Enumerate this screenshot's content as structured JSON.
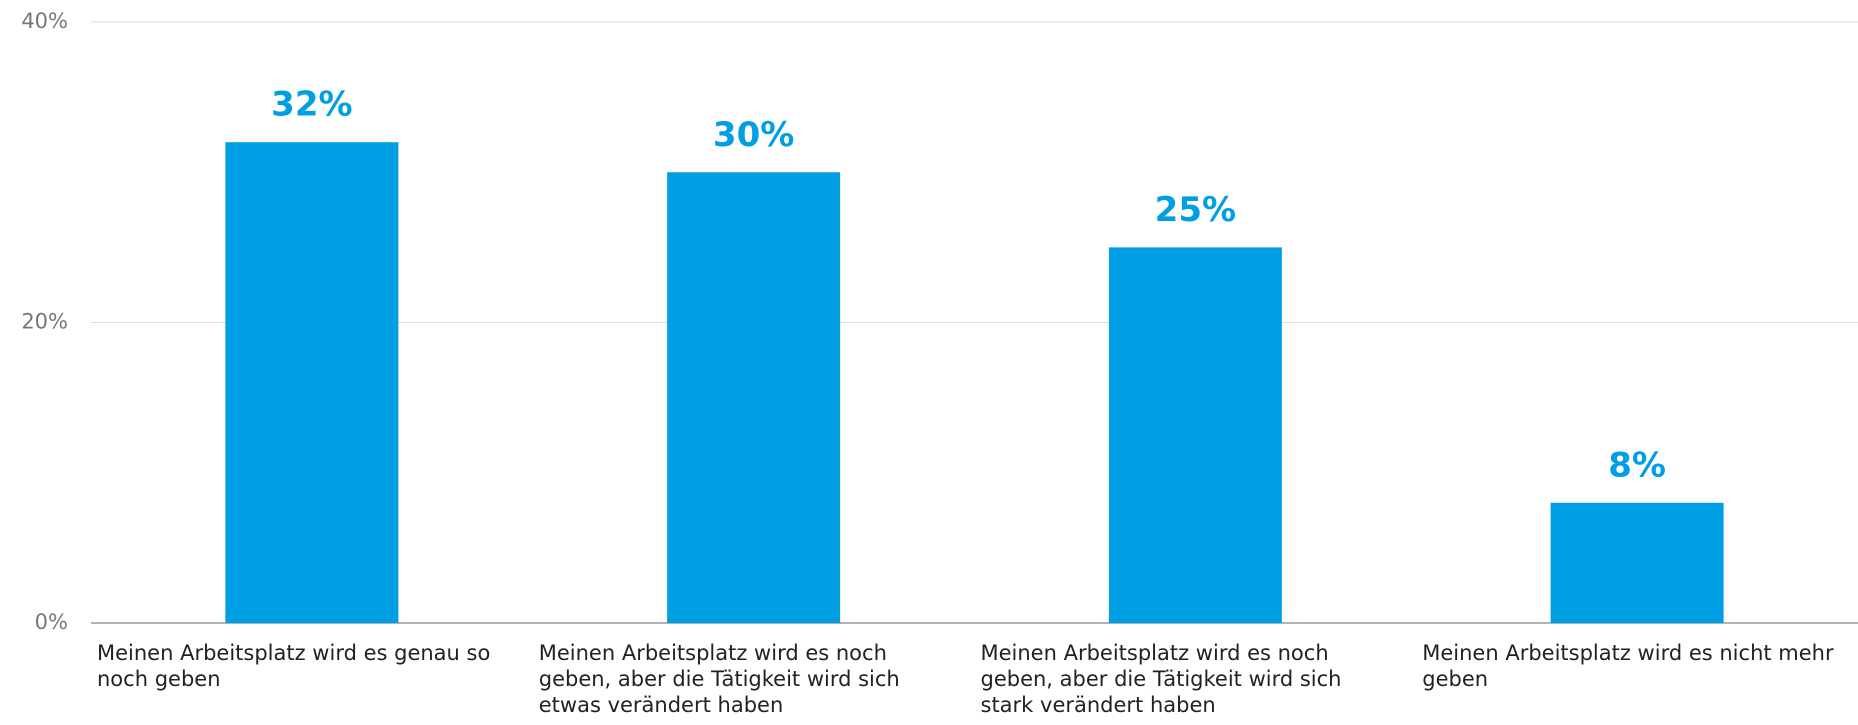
{
  "chart_data": {
    "type": "bar",
    "categories": [
      "Meinen Arbeitsplatz wird es genau so noch geben",
      "Meinen Arbeitsplatz wird es noch geben, aber die Tätigkeit wird sich etwas verändert haben",
      "Meinen Arbeitsplatz wird es noch geben, aber die Tätigkeit wird sich stark verändert haben",
      "Meinen Arbeitsplatz wird es nicht mehr geben"
    ],
    "values": [
      32,
      30,
      25,
      8
    ],
    "value_labels": [
      "32%",
      "30%",
      "25%",
      "8%"
    ],
    "color": "#009fe3",
    "ylim": [
      0,
      40
    ],
    "yticks": [
      {
        "value": 0,
        "label": "0%"
      },
      {
        "value": 20,
        "label": "20%"
      },
      {
        "value": 40,
        "label": "40%"
      }
    ],
    "grid": true
  }
}
